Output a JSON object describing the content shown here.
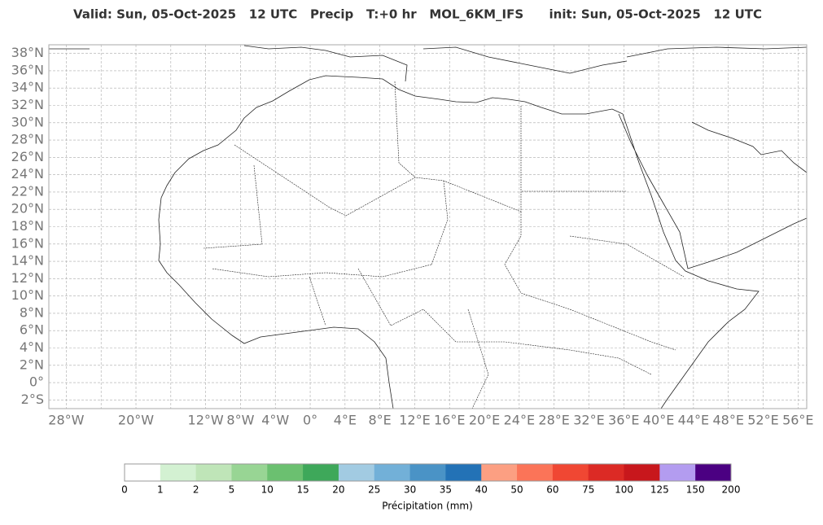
{
  "header": {
    "title": "Valid: Sun, 05-Oct-2025   12 UTC   Precip   T:+0 hr   MOL_6KM_IFS      init: Sun, 05-Oct-2025   12 UTC"
  },
  "map": {
    "xlim": [
      -30,
      57
    ],
    "ylim": [
      -3,
      39
    ],
    "xticks": [
      {
        "value": -28,
        "label": "28°W"
      },
      {
        "value": -24,
        "label": null
      },
      {
        "value": -20,
        "label": "20°W"
      },
      {
        "value": -16,
        "label": null
      },
      {
        "value": -12,
        "label": "12°W"
      },
      {
        "value": -8,
        "label": "8°W"
      },
      {
        "value": -4,
        "label": "4°W"
      },
      {
        "value": 0,
        "label": "0°"
      },
      {
        "value": 4,
        "label": "4°E"
      },
      {
        "value": 8,
        "label": "8°E"
      },
      {
        "value": 12,
        "label": "12°E"
      },
      {
        "value": 16,
        "label": "16°E"
      },
      {
        "value": 20,
        "label": "20°E"
      },
      {
        "value": 24,
        "label": "24°E"
      },
      {
        "value": 28,
        "label": "28°E"
      },
      {
        "value": 32,
        "label": "32°E"
      },
      {
        "value": 36,
        "label": "36°E"
      },
      {
        "value": 40,
        "label": "40°E"
      },
      {
        "value": 44,
        "label": "44°E"
      },
      {
        "value": 48,
        "label": "48°E"
      },
      {
        "value": 52,
        "label": "52°E"
      },
      {
        "value": 56,
        "label": "56°E"
      }
    ],
    "yticks": [
      {
        "value": -2,
        "label": "2°S"
      },
      {
        "value": 0,
        "label": "0°"
      },
      {
        "value": 2,
        "label": "2°N"
      },
      {
        "value": 4,
        "label": "4°N"
      },
      {
        "value": 6,
        "label": "6°N"
      },
      {
        "value": 8,
        "label": "8°N"
      },
      {
        "value": 10,
        "label": "10°N"
      },
      {
        "value": 12,
        "label": "12°N"
      },
      {
        "value": 14,
        "label": "14°N"
      },
      {
        "value": 16,
        "label": "16°N"
      },
      {
        "value": 18,
        "label": "18°N"
      },
      {
        "value": 20,
        "label": "20°N"
      },
      {
        "value": 22,
        "label": "22°N"
      },
      {
        "value": 24,
        "label": "24°N"
      },
      {
        "value": 26,
        "label": "26°N"
      },
      {
        "value": 28,
        "label": "28°N"
      },
      {
        "value": 30,
        "label": "30°N"
      },
      {
        "value": 32,
        "label": "32°N"
      },
      {
        "value": 34,
        "label": "34°N"
      },
      {
        "value": 36,
        "label": "36°N"
      },
      {
        "value": 38,
        "label": "38°N"
      }
    ]
  },
  "colorbar": {
    "label": "Précipitation (mm)",
    "ticks": [
      0,
      1,
      2,
      5,
      10,
      15,
      20,
      25,
      30,
      35,
      40,
      50,
      60,
      75,
      100,
      125,
      150,
      200
    ],
    "colors": [
      "#ffffff",
      "#d3f1d2",
      "#bfe5b8",
      "#98d594",
      "#6bc070",
      "#3ea85a",
      "#a2cbe2",
      "#72b0d8",
      "#4a93c6",
      "#2372b6",
      "#fc9f82",
      "#fb7458",
      "#f04733",
      "#dc2a25",
      "#c8171c",
      "#b39cf0",
      "#4b0082"
    ]
  }
}
